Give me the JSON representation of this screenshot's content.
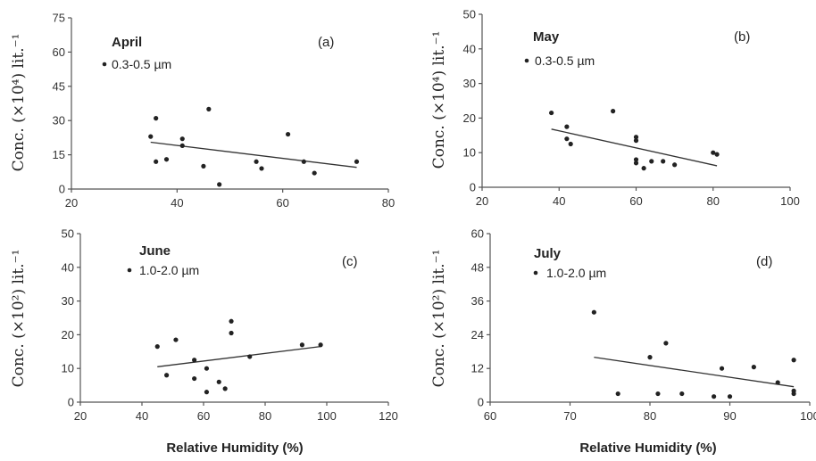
{
  "shared": {
    "xlabel": "Relative Humidity (%)"
  },
  "chart_data": [
    {
      "type": "scatter",
      "panel": "(a)",
      "month": "April",
      "legend": "0.3-0.5 µm",
      "ylabel": "Conc. (×10⁴) lit.⁻¹",
      "xlim": [
        20,
        80
      ],
      "ylim": [
        0,
        75
      ],
      "xticks": [
        "20",
        "40",
        "60",
        "80"
      ],
      "yticks": [
        "0",
        "15",
        "30",
        "45",
        "60",
        "75"
      ],
      "x": [
        35,
        36,
        36,
        38,
        41,
        41,
        45,
        46,
        48,
        55,
        56,
        61,
        64,
        66,
        74
      ],
      "y": [
        23,
        31,
        12,
        13,
        22,
        19,
        10,
        35,
        2,
        12,
        9,
        24,
        12,
        7,
        12
      ],
      "trend": [
        [
          35,
          20.5
        ],
        [
          74,
          9.5
        ]
      ]
    },
    {
      "type": "scatter",
      "panel": "(b)",
      "month": "May",
      "legend": "0.3-0.5 µm",
      "ylabel": "Conc. (×10⁴) lit.⁻¹",
      "xlim": [
        20,
        100
      ],
      "ylim": [
        0,
        50
      ],
      "xticks": [
        "20",
        "40",
        "60",
        "80",
        "100"
      ],
      "yticks": [
        "0",
        "10",
        "20",
        "30",
        "40",
        "50"
      ],
      "x": [
        38,
        42,
        42,
        43,
        54,
        60,
        60,
        60,
        60,
        62,
        64,
        67,
        70,
        80,
        81
      ],
      "y": [
        21.5,
        17.5,
        14,
        12.5,
        22,
        14.5,
        13.5,
        8,
        7,
        5.5,
        7.5,
        7.5,
        6.5,
        10,
        9.5
      ],
      "trend": [
        [
          38,
          16.8
        ],
        [
          81,
          6.2
        ]
      ]
    },
    {
      "type": "scatter",
      "panel": "(c)",
      "month": "June",
      "legend": "1.0-2.0 µm",
      "ylabel": "Conc. (×10²) lit.⁻¹",
      "xlim": [
        20,
        120
      ],
      "ylim": [
        0,
        50
      ],
      "xticks": [
        "20",
        "40",
        "60",
        "80",
        "100",
        "120"
      ],
      "yticks": [
        "0",
        "10",
        "20",
        "30",
        "40",
        "50"
      ],
      "x": [
        45,
        48,
        51,
        57,
        57,
        61,
        61,
        65,
        67,
        69,
        69,
        75,
        92,
        98
      ],
      "y": [
        16.5,
        8,
        18.5,
        12.5,
        7,
        10,
        3,
        6,
        4,
        24,
        20.5,
        13.5,
        17,
        17
      ],
      "trend": [
        [
          45,
          10.5
        ],
        [
          98,
          16.5
        ]
      ]
    },
    {
      "type": "scatter",
      "panel": "(d)",
      "month": "July",
      "legend": "1.0-2.0 µm",
      "ylabel": "Conc. (×10²) lit.⁻¹",
      "xlim": [
        60,
        100
      ],
      "ylim": [
        0,
        60
      ],
      "xticks": [
        "60",
        "70",
        "80",
        "90",
        "100"
      ],
      "yticks": [
        "0",
        "12",
        "24",
        "36",
        "48",
        "60"
      ],
      "x": [
        73,
        76,
        80,
        81,
        82,
        84,
        88,
        89,
        90,
        93,
        96,
        98,
        98,
        98
      ],
      "y": [
        32,
        3,
        16,
        3,
        21,
        3,
        2,
        12,
        2,
        12.5,
        7,
        15,
        4,
        3
      ],
      "trend": [
        [
          73,
          16
        ],
        [
          98,
          5.5
        ]
      ]
    }
  ]
}
